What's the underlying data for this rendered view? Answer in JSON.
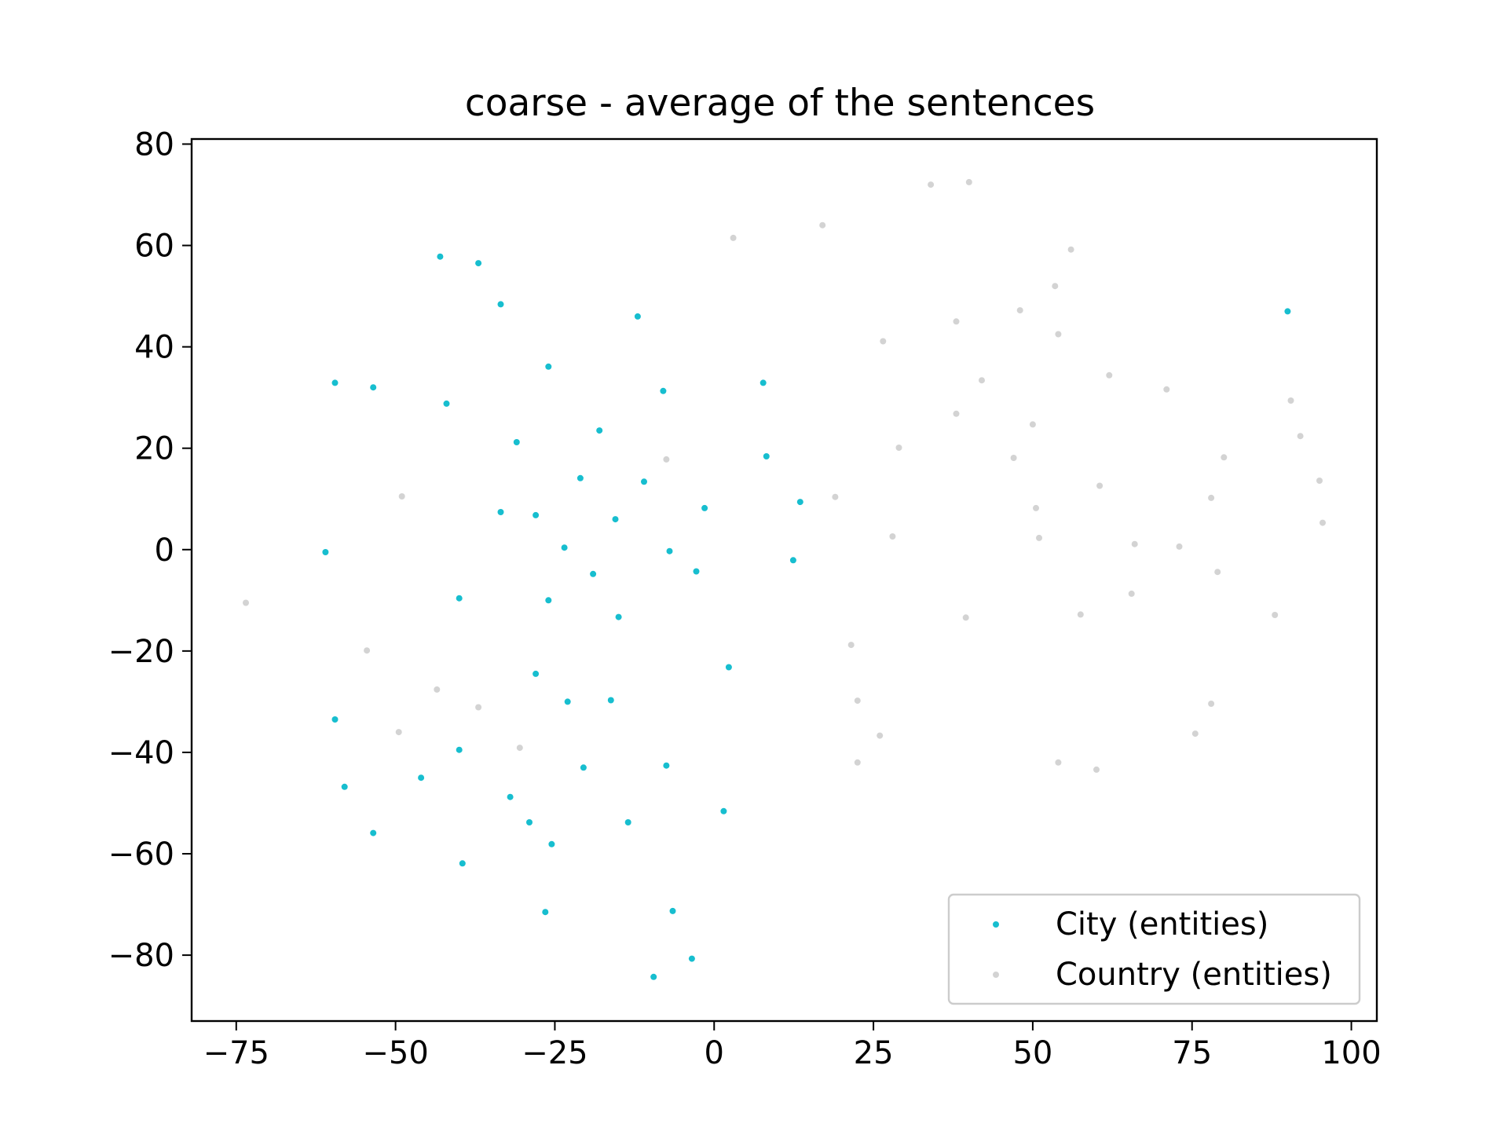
{
  "chart_data": {
    "type": "scatter",
    "title": "coarse - average of the sentences",
    "xlabel": "",
    "ylabel": "",
    "xlim": [
      -82,
      104
    ],
    "ylim": [
      -93,
      81
    ],
    "xticks": [
      {
        "value": -75,
        "label": "−75"
      },
      {
        "value": -50,
        "label": "−50"
      },
      {
        "value": -25,
        "label": "−25"
      },
      {
        "value": 0,
        "label": "0"
      },
      {
        "value": 25,
        "label": "25"
      },
      {
        "value": 50,
        "label": "50"
      },
      {
        "value": 75,
        "label": "75"
      },
      {
        "value": 100,
        "label": "100"
      }
    ],
    "yticks": [
      {
        "value": 80,
        "label": "80"
      },
      {
        "value": 60,
        "label": "60"
      },
      {
        "value": 40,
        "label": "40"
      },
      {
        "value": 20,
        "label": "20"
      },
      {
        "value": 0,
        "label": "0"
      },
      {
        "value": -20,
        "label": "−20"
      },
      {
        "value": -40,
        "label": "−40"
      },
      {
        "value": -60,
        "label": "−60"
      },
      {
        "value": -80,
        "label": "−80"
      }
    ],
    "grid": false,
    "legend_position": "lower-right",
    "series": [
      {
        "name": "City (entities)",
        "color": "#17becf",
        "points": [
          [
            -43,
            57.8
          ],
          [
            -37,
            56.5
          ],
          [
            -33.5,
            48.4
          ],
          [
            -12,
            46
          ],
          [
            -59.5,
            32.9
          ],
          [
            -53.5,
            32
          ],
          [
            -42,
            28.8
          ],
          [
            -26,
            36.1
          ],
          [
            -8,
            31.3
          ],
          [
            7.7,
            32.9
          ],
          [
            -31,
            21.2
          ],
          [
            -18,
            23.5
          ],
          [
            -21,
            14.1
          ],
          [
            -11,
            13.4
          ],
          [
            8.2,
            18.4
          ],
          [
            -33.5,
            7.4
          ],
          [
            -28,
            6.8
          ],
          [
            -15.5,
            6
          ],
          [
            -1.5,
            8.2
          ],
          [
            13.5,
            9.4
          ],
          [
            -61,
            -0.5
          ],
          [
            -23.5,
            0.4
          ],
          [
            -7,
            -0.3
          ],
          [
            -19,
            -4.8
          ],
          [
            -2.8,
            -4.3
          ],
          [
            12.4,
            -2.1
          ],
          [
            -40,
            -9.6
          ],
          [
            -26,
            -10
          ],
          [
            -15,
            -13.3
          ],
          [
            2.3,
            -23.2
          ],
          [
            -28,
            -24.5
          ],
          [
            -23,
            -30
          ],
          [
            -16.2,
            -29.7
          ],
          [
            -59.5,
            -33.5
          ],
          [
            -40,
            -39.5
          ],
          [
            -58,
            -46.8
          ],
          [
            -46,
            -45
          ],
          [
            -20.5,
            -43
          ],
          [
            -7.5,
            -42.6
          ],
          [
            -32,
            -48.8
          ],
          [
            -29,
            -53.8
          ],
          [
            -13.5,
            -53.8
          ],
          [
            1.5,
            -51.6
          ],
          [
            -53.5,
            -55.9
          ],
          [
            -25.5,
            -58.1
          ],
          [
            -39.5,
            -61.9
          ],
          [
            -26.5,
            -71.5
          ],
          [
            -6.5,
            -71.3
          ],
          [
            -3.5,
            -80.7
          ],
          [
            -9.5,
            -84.3
          ],
          [
            90,
            47
          ]
        ]
      },
      {
        "name": "Country (entities)",
        "color": "#d3d3d3",
        "points": [
          [
            34,
            72
          ],
          [
            40,
            72.5
          ],
          [
            3,
            61.5
          ],
          [
            17,
            64
          ],
          [
            56,
            59.2
          ],
          [
            53.5,
            52
          ],
          [
            48,
            47.2
          ],
          [
            38,
            45
          ],
          [
            54,
            42.5
          ],
          [
            26.5,
            41.1
          ],
          [
            42,
            33.4
          ],
          [
            62,
            34.4
          ],
          [
            71,
            31.6
          ],
          [
            90.5,
            29.4
          ],
          [
            38,
            26.8
          ],
          [
            50,
            24.7
          ],
          [
            92,
            22.4
          ],
          [
            29,
            20.1
          ],
          [
            47,
            18.1
          ],
          [
            80,
            18.2
          ],
          [
            -7.5,
            17.8
          ],
          [
            60.5,
            12.6
          ],
          [
            95,
            13.6
          ],
          [
            -49,
            10.5
          ],
          [
            19,
            10.4
          ],
          [
            78,
            10.2
          ],
          [
            50.5,
            8.2
          ],
          [
            95.5,
            5.3
          ],
          [
            28,
            2.6
          ],
          [
            51,
            2.3
          ],
          [
            66,
            1.1
          ],
          [
            73,
            0.6
          ],
          [
            79,
            -4.4
          ],
          [
            -73.5,
            -10.5
          ],
          [
            65.5,
            -8.7
          ],
          [
            57.5,
            -12.8
          ],
          [
            88,
            -12.9
          ],
          [
            39.5,
            -13.4
          ],
          [
            -54.5,
            -19.9
          ],
          [
            21.5,
            -18.8
          ],
          [
            -43.5,
            -27.6
          ],
          [
            -37,
            -31.1
          ],
          [
            22.5,
            -29.8
          ],
          [
            78,
            -30.4
          ],
          [
            -49.5,
            -36
          ],
          [
            26,
            -36.7
          ],
          [
            75.5,
            -36.3
          ],
          [
            -30.5,
            -39.1
          ],
          [
            22.5,
            -42
          ],
          [
            54,
            -42
          ],
          [
            60,
            -43.4
          ]
        ]
      }
    ]
  }
}
